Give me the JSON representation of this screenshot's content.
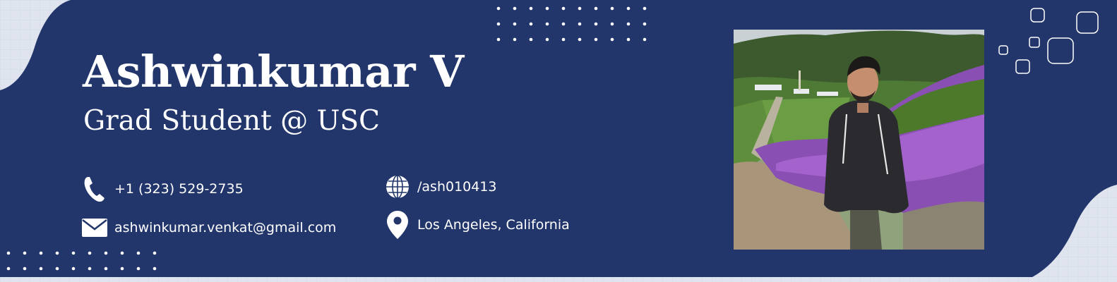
{
  "profile": {
    "name": "Ashwinkumar V",
    "subtitle": "Grad Student @ USC"
  },
  "contacts": {
    "phone": {
      "icon": "phone-icon",
      "value": "+1 (323) 529-2735"
    },
    "email": {
      "icon": "envelope-icon",
      "value": "ashwinkumar.venkat@gmail.com"
    },
    "social": {
      "icon": "globe-icon",
      "value": "/ash010413"
    },
    "location": {
      "icon": "map-pin-icon",
      "value": "Los Angeles, California"
    }
  },
  "photo": {
    "subject": "portrait photo of person standing beside purple flowers on a hillside"
  },
  "colors": {
    "background": "#22366b",
    "outer": "#dfe4ef",
    "text": "#ffffff"
  }
}
